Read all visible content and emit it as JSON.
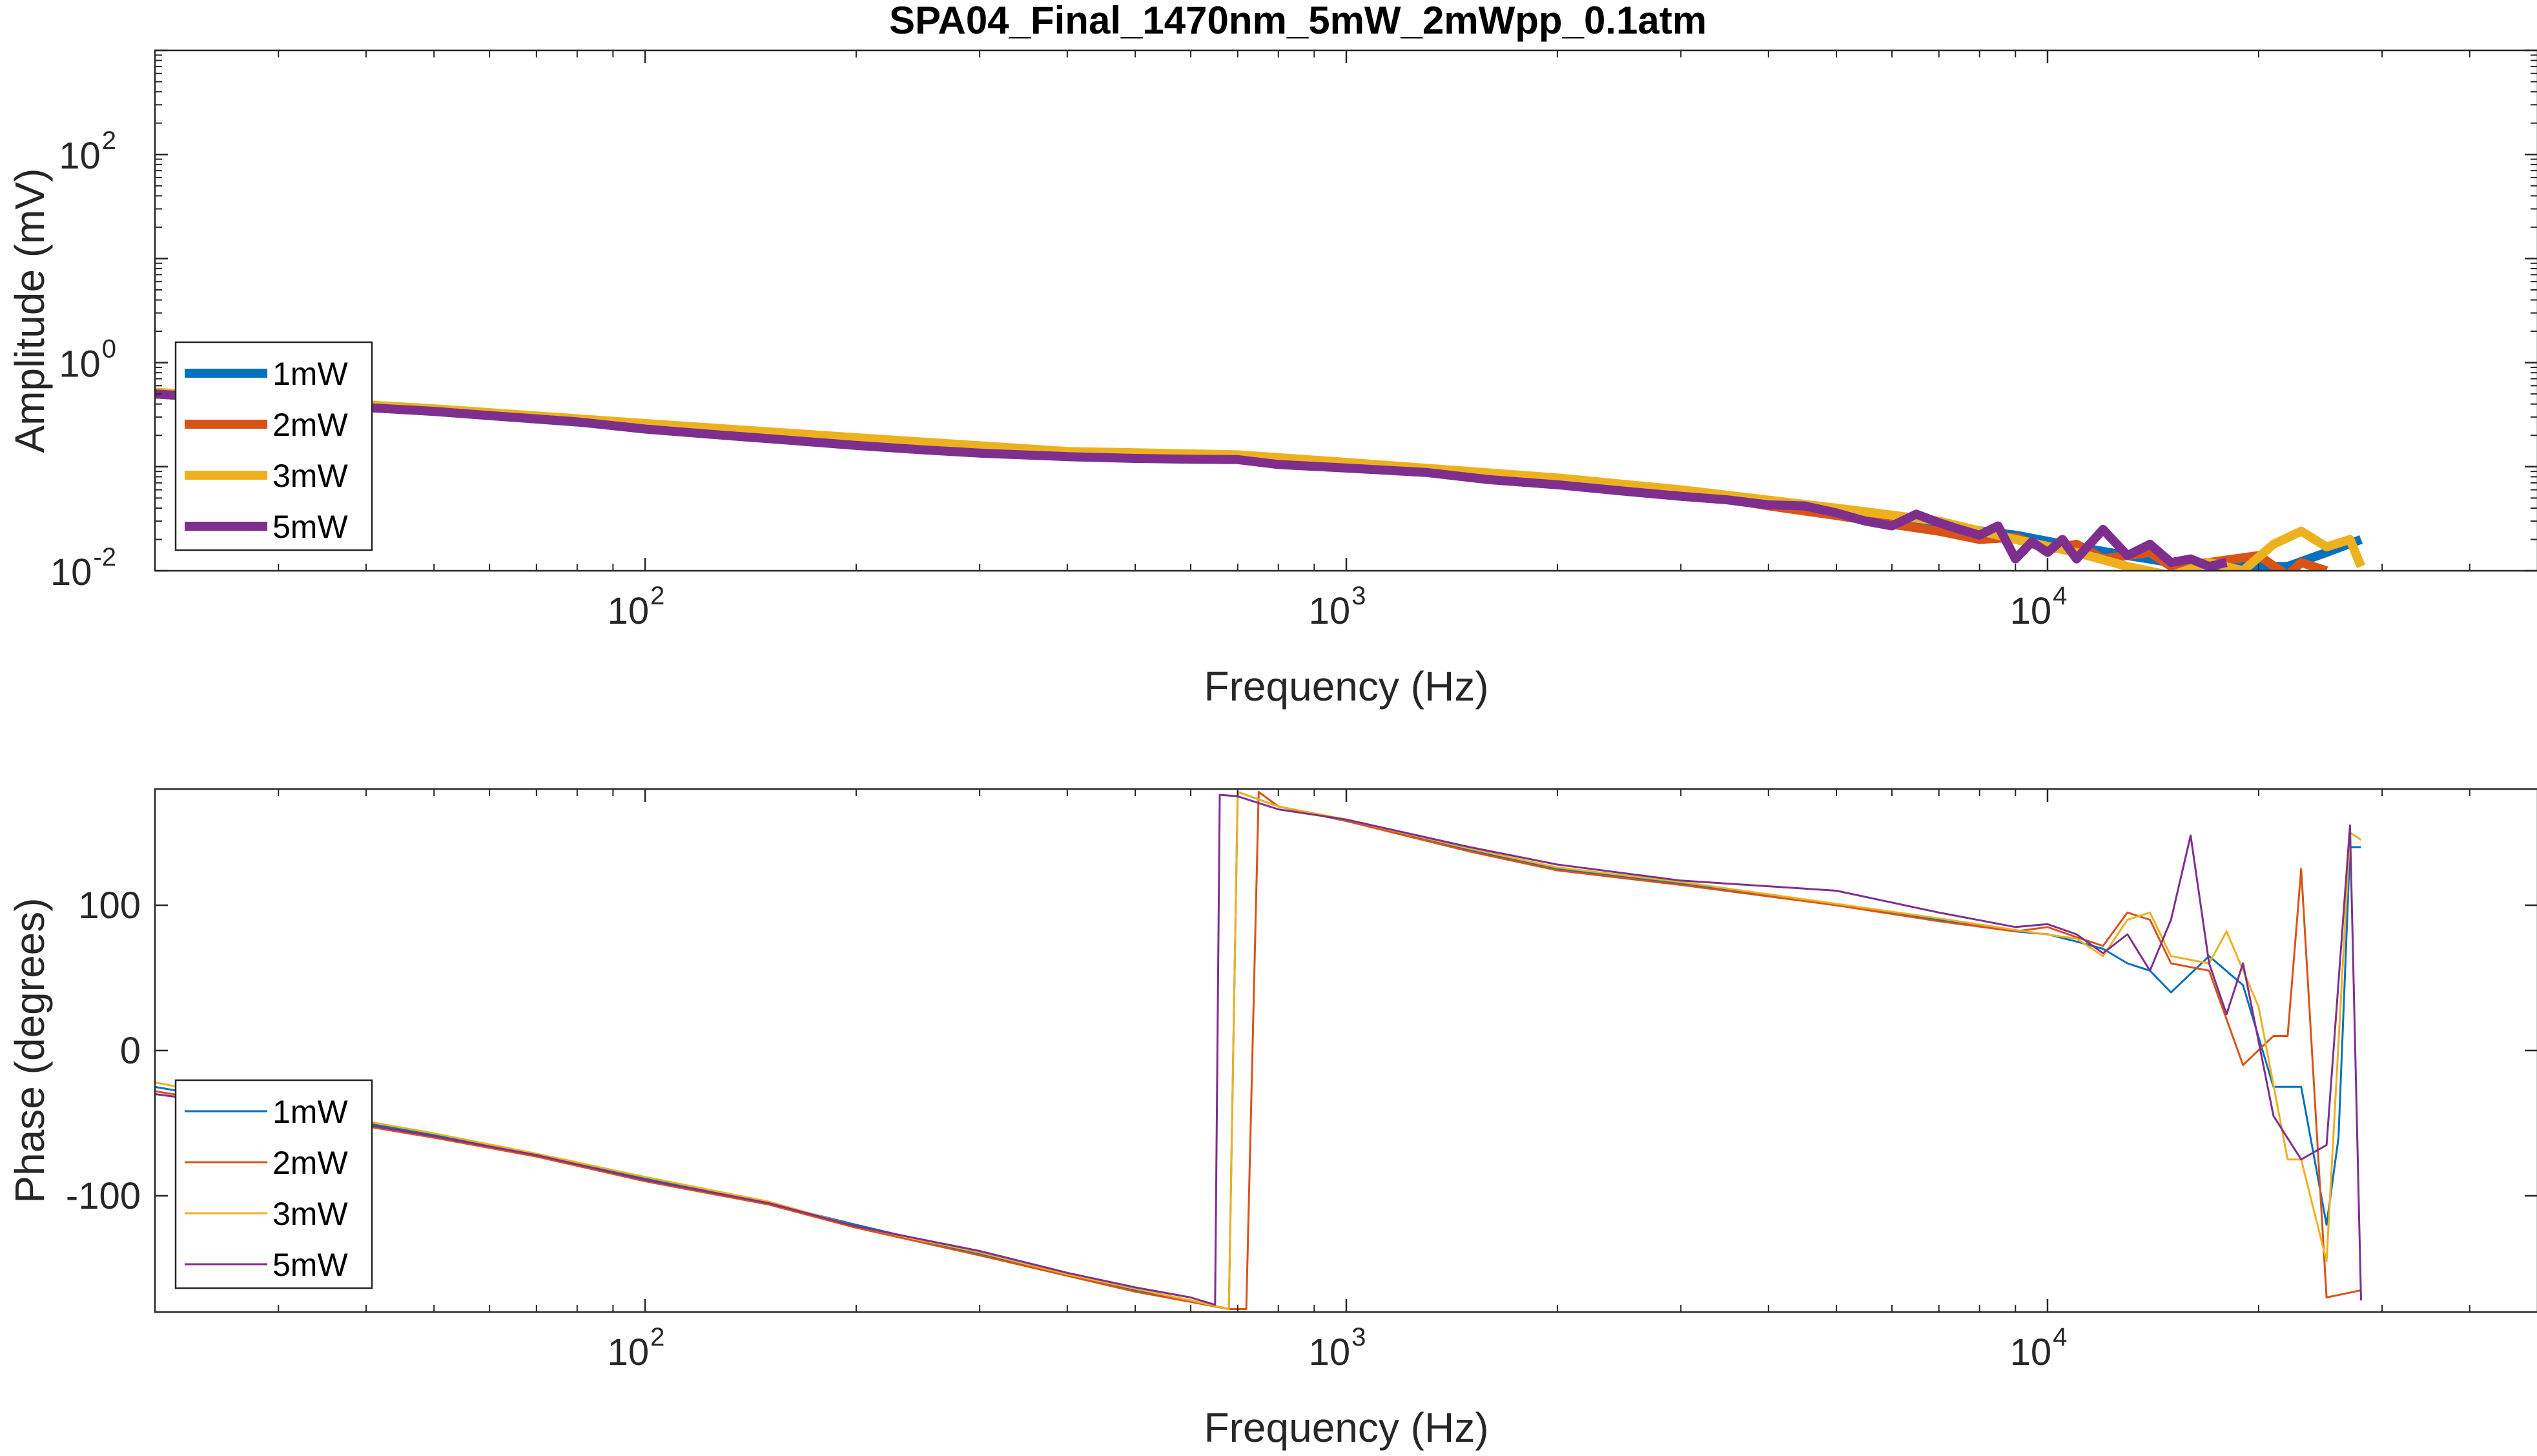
{
  "figure": {
    "title": "SPA04_Final_1470nm_5mW_2mWpp_0.1atm"
  },
  "colors": {
    "1mW": "#0072BD",
    "2mW": "#D95319",
    "3mW": "#EDB120",
    "5mW": "#7E2F8E"
  },
  "chart_data": [
    {
      "type": "line",
      "id": "amplitude",
      "title": "SPA04_Final_1470nm_5mW_2mWpp_0.1atm",
      "xlabel": "Frequency (Hz)",
      "ylabel": "Amplitude (mV)",
      "xscale": "log",
      "yscale": "log",
      "xlim": [
        20,
        50000
      ],
      "ylim": [
        0.01,
        1000
      ],
      "xticks": [
        {
          "base": "10",
          "exp": "2",
          "value": 100
        },
        {
          "base": "10",
          "exp": "3",
          "value": 1000
        },
        {
          "base": "10",
          "exp": "4",
          "value": 10000
        }
      ],
      "yticks": [
        {
          "base": "10",
          "exp": "-2",
          "value": 0.01
        },
        {
          "base": "10",
          "exp": "0",
          "value": 1
        },
        {
          "base": "10",
          "exp": "2",
          "value": 100
        }
      ],
      "grid": false,
      "legend_position": "bottom-left",
      "legend": [
        "1mW",
        "2mW",
        "3mW",
        "5mW"
      ],
      "series": [
        {
          "name": "1mW",
          "x": [
            20,
            30,
            50,
            100,
            200,
            400,
            700,
            1000,
            2000,
            3000,
            5000,
            7000,
            9000,
            11000,
            13000,
            15000,
            18000,
            22000,
            25000,
            28000
          ],
          "y": [
            0.5,
            0.42,
            0.34,
            0.24,
            0.17,
            0.13,
            0.12,
            0.1,
            0.072,
            0.055,
            0.035,
            0.027,
            0.022,
            0.017,
            0.014,
            0.012,
            0.011,
            0.011,
            0.015,
            0.02
          ]
        },
        {
          "name": "2mW",
          "x": [
            20,
            30,
            50,
            100,
            200,
            400,
            700,
            1000,
            2000,
            3000,
            4000,
            5000,
            6000,
            7000,
            8000,
            9000,
            10000,
            11000,
            12000,
            14000,
            15000,
            17000,
            20000,
            22000,
            23000,
            25000
          ],
          "y": [
            0.5,
            0.43,
            0.35,
            0.25,
            0.18,
            0.135,
            0.125,
            0.105,
            0.075,
            0.058,
            0.042,
            0.034,
            0.028,
            0.024,
            0.02,
            0.021,
            0.016,
            0.018,
            0.013,
            0.015,
            0.011,
            0.012,
            0.014,
            0.009,
            0.012,
            0.01
          ]
        },
        {
          "name": "3mW",
          "x": [
            20,
            30,
            50,
            100,
            200,
            400,
            700,
            1000,
            2000,
            3000,
            5000,
            7000,
            9000,
            11000,
            13000,
            15000,
            17000,
            19000,
            21000,
            23000,
            25000,
            27000,
            28000
          ],
          "y": [
            0.52,
            0.44,
            0.36,
            0.26,
            0.19,
            0.14,
            0.13,
            0.11,
            0.078,
            0.06,
            0.04,
            0.03,
            0.02,
            0.015,
            0.011,
            0.009,
            0.012,
            0.01,
            0.018,
            0.024,
            0.017,
            0.02,
            0.011
          ]
        },
        {
          "name": "5mW",
          "x": [
            20,
            30,
            40,
            50,
            60,
            80,
            100,
            130,
            160,
            200,
            250,
            300,
            400,
            500,
            600,
            700,
            800,
            1000,
            1300,
            1600,
            2000,
            2500,
            3000,
            3500,
            4000,
            4500,
            5000,
            5500,
            6000,
            6500,
            7000,
            7500,
            8000,
            8500,
            9000,
            9500,
            10000,
            10500,
            11000,
            12000,
            13000,
            14000,
            15000,
            16000,
            17000,
            18000
          ],
          "y": [
            0.5,
            0.42,
            0.37,
            0.34,
            0.31,
            0.27,
            0.23,
            0.2,
            0.18,
            0.16,
            0.145,
            0.135,
            0.125,
            0.12,
            0.118,
            0.117,
            0.105,
            0.097,
            0.088,
            0.075,
            0.067,
            0.058,
            0.052,
            0.048,
            0.043,
            0.042,
            0.036,
            0.03,
            0.027,
            0.035,
            0.029,
            0.025,
            0.022,
            0.027,
            0.013,
            0.019,
            0.015,
            0.02,
            0.013,
            0.025,
            0.014,
            0.018,
            0.012,
            0.013,
            0.011,
            0.012
          ]
        }
      ]
    },
    {
      "type": "line",
      "id": "phase",
      "xlabel": "Frequency (Hz)",
      "ylabel": "Phase (degrees)",
      "xscale": "log",
      "yscale": "linear",
      "xlim": [
        20,
        50000
      ],
      "ylim": [
        -180,
        180
      ],
      "xticks": [
        {
          "base": "10",
          "exp": "2",
          "value": 100
        },
        {
          "base": "10",
          "exp": "3",
          "value": 1000
        },
        {
          "base": "10",
          "exp": "4",
          "value": 10000
        }
      ],
      "yticks": [
        {
          "label": "-100",
          "value": -100
        },
        {
          "label": "0",
          "value": 0
        },
        {
          "label": "100",
          "value": 100
        }
      ],
      "grid": false,
      "legend_position": "bottom-left",
      "legend": [
        "1mW",
        "2mW",
        "3mW",
        "5mW"
      ],
      "series": [
        {
          "name": "1mW",
          "x": [
            20,
            30,
            50,
            70,
            100,
            150,
            200,
            300,
            400,
            500,
            600,
            680,
            700,
            800,
            1000,
            1500,
            2000,
            3000,
            5000,
            7000,
            9000,
            10000,
            11000,
            12000,
            13000,
            14000,
            15000,
            17000,
            19000,
            21000,
            23000,
            25000,
            26000,
            27000,
            28000
          ],
          "y": [
            -25,
            -40,
            -58,
            -72,
            -88,
            -105,
            -120,
            -140,
            -155,
            -165,
            -172,
            -178,
            178,
            168,
            158,
            138,
            125,
            115,
            100,
            90,
            82,
            80,
            75,
            70,
            60,
            55,
            40,
            65,
            45,
            -25,
            -25,
            -120,
            -60,
            140,
            140
          ]
        },
        {
          "name": "2mW",
          "x": [
            20,
            30,
            50,
            70,
            100,
            150,
            200,
            300,
            400,
            500,
            600,
            680,
            720,
            750,
            800,
            1000,
            1500,
            2000,
            3000,
            5000,
            7000,
            9000,
            10000,
            11000,
            12000,
            13000,
            14000,
            15000,
            17000,
            19000,
            21000,
            22000,
            23000,
            25000,
            28000
          ],
          "y": [
            -28,
            -42,
            -60,
            -73,
            -90,
            -106,
            -122,
            -141,
            -155,
            -166,
            -173,
            -178,
            -178,
            178,
            168,
            158,
            137,
            124,
            114,
            100,
            89,
            82,
            85,
            78,
            72,
            95,
            90,
            60,
            55,
            -10,
            10,
            10,
            125,
            -170,
            -165
          ]
        },
        {
          "name": "3mW",
          "x": [
            20,
            30,
            50,
            70,
            100,
            150,
            200,
            300,
            400,
            500,
            600,
            680,
            700,
            800,
            1000,
            1500,
            2000,
            3000,
            5000,
            7000,
            9000,
            11000,
            12000,
            13000,
            14000,
            15000,
            17000,
            18000,
            20000,
            22000,
            23000,
            25000,
            27000,
            28000
          ],
          "y": [
            -22,
            -38,
            -57,
            -71,
            -87,
            -104,
            -121,
            -139,
            -154,
            -164,
            -172,
            -178,
            178,
            168,
            159,
            139,
            126,
            116,
            101,
            91,
            83,
            77,
            65,
            90,
            95,
            65,
            60,
            82,
            30,
            -75,
            -75,
            -145,
            150,
            145
          ]
        },
        {
          "name": "5mW",
          "x": [
            20,
            30,
            50,
            70,
            100,
            150,
            200,
            300,
            400,
            500,
            600,
            650,
            660,
            700,
            800,
            1000,
            1500,
            2000,
            3000,
            5000,
            7000,
            9000,
            10000,
            11000,
            12000,
            13000,
            14000,
            15000,
            16000,
            17000,
            18000,
            19000,
            21000,
            23000,
            25000,
            27000,
            28000
          ],
          "y": [
            -30,
            -41,
            -59,
            -72,
            -89,
            -105,
            -121,
            -138,
            -153,
            -163,
            -170,
            -175,
            176,
            175,
            166,
            159,
            140,
            128,
            117,
            110,
            95,
            85,
            87,
            80,
            67,
            80,
            55,
            90,
            148,
            60,
            25,
            60,
            -45,
            -75,
            -65,
            155,
            -172
          ]
        }
      ]
    }
  ]
}
